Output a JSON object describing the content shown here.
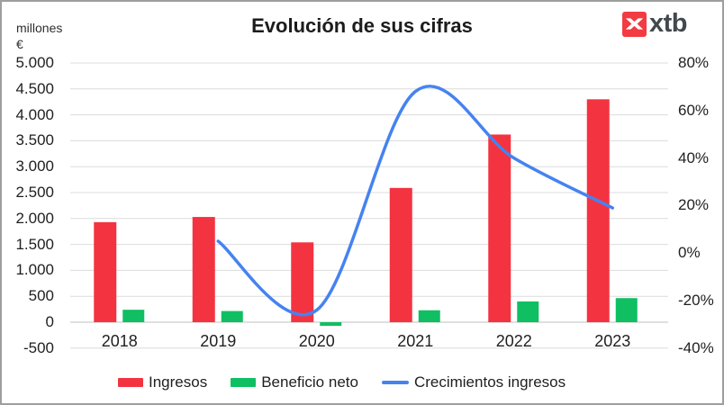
{
  "logo": {
    "text": "xtb",
    "mark_color": "#f23b42",
    "text_color": "#42484d"
  },
  "colors": {
    "grid": "#dcdcdc",
    "zero_line": "#c2c2c2",
    "text": "#1f1f1f",
    "border": "#9e9e9e",
    "background": "#ffffff"
  },
  "chart_data": {
    "type": "combo-bar-line",
    "title": "Evolución de sus cifras",
    "categories": [
      "2018",
      "2019",
      "2020",
      "2021",
      "2022",
      "2023"
    ],
    "series": [
      {
        "name": "Ingresos",
        "type": "bar",
        "axis": "left",
        "color": "#f43340",
        "values": [
          1930,
          2030,
          1540,
          2590,
          3620,
          4300
        ]
      },
      {
        "name": "Beneficio neto",
        "type": "bar",
        "axis": "left",
        "color": "#10bf62",
        "values": [
          240,
          215,
          -70,
          230,
          400,
          465
        ]
      },
      {
        "name": "Crecimientos ingresos",
        "type": "line",
        "axis": "right",
        "color": "#4583f0",
        "values": [
          null,
          5,
          -24,
          68,
          40,
          19
        ]
      }
    ],
    "left_axis": {
      "unit_line1": "millones",
      "unit_line2": "€",
      "min": -500,
      "max": 5000,
      "step": 500,
      "ticks": [
        "5.000",
        "4.500",
        "4.000",
        "3.500",
        "3.000",
        "2.500",
        "2.000",
        "1.500",
        "1.000",
        "500",
        "0",
        "-500"
      ]
    },
    "right_axis": {
      "min": -40,
      "max": 80,
      "step": 20,
      "ticks": [
        "80%",
        "60%",
        "40%",
        "20%",
        "0%",
        "-20%",
        "-40%"
      ]
    },
    "legend_position": "bottom",
    "grid": true
  }
}
